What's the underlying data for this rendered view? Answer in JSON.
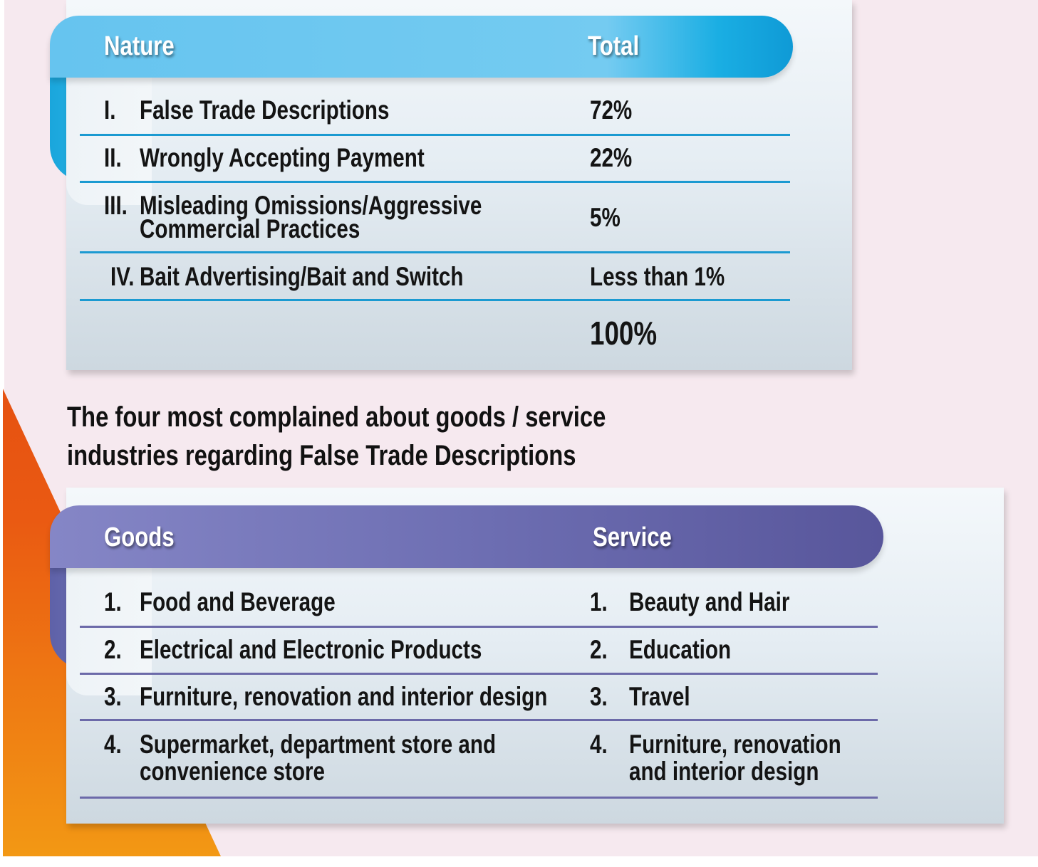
{
  "nature_table": {
    "header_nature": "Nature",
    "header_total": "Total",
    "rows": [
      {
        "numeral": "I.",
        "nature": "False Trade Descriptions",
        "nature_line2": "",
        "total": "72%"
      },
      {
        "numeral": "II.",
        "nature": "Wrongly Accepting Payment",
        "nature_line2": "",
        "total": "22%"
      },
      {
        "numeral": "III.",
        "nature": "Misleading Omissions/Aggressive",
        "nature_line2": "Commercial Practices",
        "total": "5%"
      },
      {
        "numeral": "IV.",
        "nature": "Bait Advertising/Bait and Switch",
        "nature_line2": "",
        "total": "Less than 1%"
      }
    ],
    "grand_total": "100%"
  },
  "caption": {
    "line1": "The four most complained about goods / service",
    "line2": "industries regarding False Trade Descriptions"
  },
  "industries_table": {
    "header_goods": "Goods",
    "header_service": "Service",
    "rows": [
      {
        "goods_num": "1.",
        "goods": "Food and Beverage",
        "goods_line2": "",
        "service_num": "1.",
        "service": "Beauty and Hair",
        "service_line2": ""
      },
      {
        "goods_num": "2.",
        "goods": "Electrical and Electronic Products",
        "goods_line2": "",
        "service_num": "2.",
        "service": "Education",
        "service_line2": ""
      },
      {
        "goods_num": "3.",
        "goods": "Furniture, renovation and interior design",
        "goods_line2": "",
        "service_num": "3.",
        "service": "Travel",
        "service_line2": ""
      },
      {
        "goods_num": "4.",
        "goods": "Supermarket, department store and",
        "goods_line2": "convenience store",
        "service_num": "4.",
        "service": "Furniture, renovation",
        "service_line2": "and interior design"
      }
    ]
  },
  "colors": {
    "nature_header": "#66c4ef",
    "industries_header": "#6e6fb3",
    "accent_orange": "#ea5a12"
  }
}
